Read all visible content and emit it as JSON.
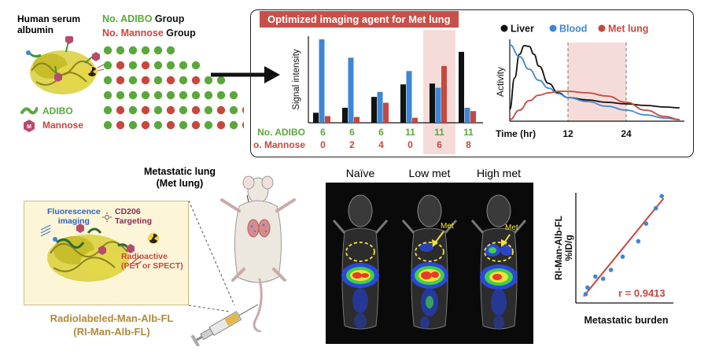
{
  "header": {
    "protein_label": "Human serum\nalbumin",
    "adibo_count": "No. ADIBO",
    "adibo_group": " Group",
    "mannose_count": "No. Mannose",
    "mannose_group": " Group"
  },
  "legend_left": {
    "adibo": "ADIBO",
    "mannose": "Mannose"
  },
  "dot_grid": {
    "rows": [
      {
        "green": 6,
        "red": 0
      },
      {
        "green": 6,
        "red": 2
      },
      {
        "green": 6,
        "red": 4
      },
      {
        "green": 11,
        "red": 0
      },
      {
        "green": 11,
        "red": 6
      },
      {
        "green": 11,
        "red": 8
      }
    ],
    "colors": {
      "green": "#5aa83c",
      "red": "#c8473e"
    }
  },
  "banner": "Optimized imaging agent for Met lung",
  "chart_data": [
    {
      "type": "bar",
      "ylabel": "Signal intensity",
      "categories": [
        "0",
        "2",
        "4",
        "0",
        "6",
        "8"
      ],
      "highlight_index": 4,
      "series": [
        {
          "name": "",
          "color": "#111111",
          "values": [
            0.12,
            0.18,
            0.31,
            0.46,
            0.47,
            0.85
          ]
        },
        {
          "name": "",
          "color": "#3f86d4",
          "values": [
            1.0,
            0.78,
            0.37,
            0.62,
            0.42,
            0.18
          ]
        },
        {
          "name": "",
          "color": "#c8473e",
          "values": [
            0.08,
            0.07,
            0.24,
            0.06,
            0.68,
            0.14
          ]
        }
      ],
      "row_labels": {
        "adibo": {
          "label": "No. ADIBO",
          "values": [
            "6",
            "6",
            "6",
            "11",
            "11",
            "11"
          ]
        },
        "mannose": {
          "label": "No. Mannose",
          "values": [
            "0",
            "2",
            "4",
            "0",
            "6",
            "8"
          ]
        }
      }
    },
    {
      "type": "line",
      "xlabel": "Time (hr)",
      "ylabel": "Activity",
      "xticks": [
        "12",
        "24"
      ],
      "xlim": [
        0,
        36
      ],
      "ylim": [
        0,
        1
      ],
      "highlight_x": [
        12,
        24
      ],
      "legend": [
        "Liver",
        "Blood",
        "Met lung"
      ],
      "series": [
        {
          "name": "Liver",
          "color": "#111111",
          "x": [
            0,
            1,
            2,
            3,
            4,
            5,
            6,
            8,
            10,
            12,
            16,
            20,
            24,
            28,
            32,
            35
          ],
          "y": [
            0.15,
            0.55,
            0.85,
            0.96,
            0.95,
            0.85,
            0.7,
            0.48,
            0.36,
            0.3,
            0.27,
            0.24,
            0.22,
            0.2,
            0.18,
            0.17
          ]
        },
        {
          "name": "Blood",
          "color": "#3f86d4",
          "x": [
            0,
            2,
            4,
            6,
            8,
            10,
            12,
            16,
            20,
            24,
            28,
            32,
            35
          ],
          "y": [
            0.97,
            0.82,
            0.66,
            0.52,
            0.42,
            0.35,
            0.3,
            0.25,
            0.19,
            0.14,
            0.08,
            0.04,
            0.02
          ]
        },
        {
          "name": "Met lung",
          "color": "#c8473e",
          "x": [
            0,
            2,
            4,
            6,
            8,
            10,
            12,
            16,
            20,
            24,
            28,
            32,
            35
          ],
          "y": [
            0.02,
            0.14,
            0.26,
            0.33,
            0.36,
            0.38,
            0.38,
            0.36,
            0.32,
            0.24,
            0.14,
            0.06,
            0.02
          ]
        }
      ]
    },
    {
      "type": "scatter",
      "xlabel": "Metastatic burden",
      "ylabel": "RI-Man-Alb-FL\n%ID/g",
      "annotation": "r = 0.9413",
      "points": {
        "color": "#3f86d4",
        "x": [
          0.1,
          0.12,
          0.2,
          0.28,
          0.36,
          0.48,
          0.64,
          0.72,
          0.82,
          0.88
        ],
        "y": [
          0.08,
          0.14,
          0.24,
          0.22,
          0.3,
          0.42,
          0.56,
          0.72,
          0.86,
          0.97
        ]
      },
      "fit_line": {
        "color": "#c8473e",
        "x": [
          0.08,
          0.9
        ],
        "y": [
          0.06,
          0.95
        ]
      }
    }
  ],
  "mouse": {
    "label": "Metastatic lung\n(Met lung)"
  },
  "probe": {
    "fluorescence": "Fluorescence\nimaging",
    "targeting": "CD206\nTargeting",
    "radioactive": "Radioactive\n(PET or SPECT)",
    "name": "Radiolabeled-Man-Alb-FL",
    "abbr": "(RI-Man-Alb-FL)"
  },
  "panels": {
    "titles": [
      "Naïve",
      "Low met",
      "High met"
    ],
    "met_label": "Met"
  },
  "colors": {
    "accent_red": "#c8473e",
    "accent_green": "#5aa83c",
    "accent_blue": "#3f86d4",
    "gold": "#b08a3a",
    "highlight": "#f6dcd9"
  }
}
